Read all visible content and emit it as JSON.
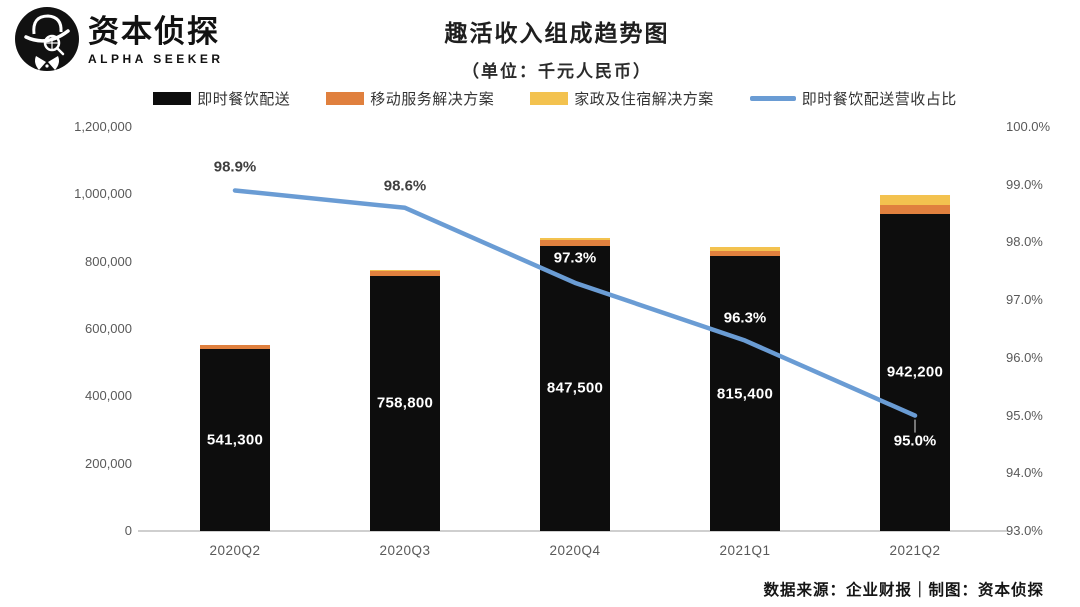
{
  "logo": {
    "brand_cn": "资本侦探",
    "brand_en": "ALPHA SEEKER"
  },
  "header": {
    "title": "趣活收入组成趋势图",
    "subtitle": "（单位：千元人民币）"
  },
  "legend": [
    {
      "label": "即时餐饮配送",
      "color": "#0d0d0d",
      "type": "swatch"
    },
    {
      "label": "移动服务解决方案",
      "color": "#e0803e",
      "type": "swatch"
    },
    {
      "label": "家政及住宿解决方案",
      "color": "#f3c24f",
      "type": "swatch"
    },
    {
      "label": "即时餐饮配送营收占比",
      "color": "#6a9cd4",
      "type": "line"
    }
  ],
  "chart_data": {
    "type": "combo-stacked-bar-line",
    "title": "趣活收入组成趋势图",
    "subtitle": "（单位：千元人民币）",
    "unit": "千元人民币",
    "categories": [
      "2020Q2",
      "2020Q3",
      "2020Q4",
      "2021Q1",
      "2021Q2"
    ],
    "series": [
      {
        "name": "即时餐饮配送",
        "type": "bar",
        "color": "#0d0d0d",
        "values": [
          541300,
          758800,
          847500,
          815400,
          942200
        ],
        "labels": [
          "541,300",
          "758,800",
          "847,500",
          "815,400",
          "942,200"
        ]
      },
      {
        "name": "移动服务解决方案",
        "type": "bar",
        "color": "#e0803e",
        "estimated": true,
        "values": [
          10000,
          13000,
          17000,
          15000,
          27000
        ]
      },
      {
        "name": "家政及住宿解决方案",
        "type": "bar",
        "color": "#f3c24f",
        "estimated": true,
        "values": [
          1500,
          2500,
          6000,
          13000,
          28000
        ]
      },
      {
        "name": "即时餐饮配送营收占比",
        "type": "line",
        "color": "#6a9cd4",
        "values": [
          98.9,
          98.6,
          97.3,
          96.3,
          95.0
        ],
        "labels": [
          "98.9%",
          "98.6%",
          "97.3%",
          "96.3%",
          "95.0%"
        ]
      }
    ],
    "left_axis": {
      "min": 0,
      "max": 1200000,
      "step": 200000,
      "ticks": [
        "1,200,000",
        "1,000,000",
        "800,000",
        "600,000",
        "400,000",
        "200,000",
        "0"
      ]
    },
    "right_axis": {
      "min": 93.0,
      "max": 100.0,
      "step": 1.0,
      "ticks": [
        "100.0%",
        "99.0%",
        "98.0%",
        "97.0%",
        "96.0%",
        "95.0%",
        "94.0%",
        "93.0%"
      ]
    },
    "grid": false,
    "legend_position": "top",
    "bars_stacked": true
  },
  "footer": {
    "source": "数据来源：企业财报｜制图：资本侦探"
  }
}
